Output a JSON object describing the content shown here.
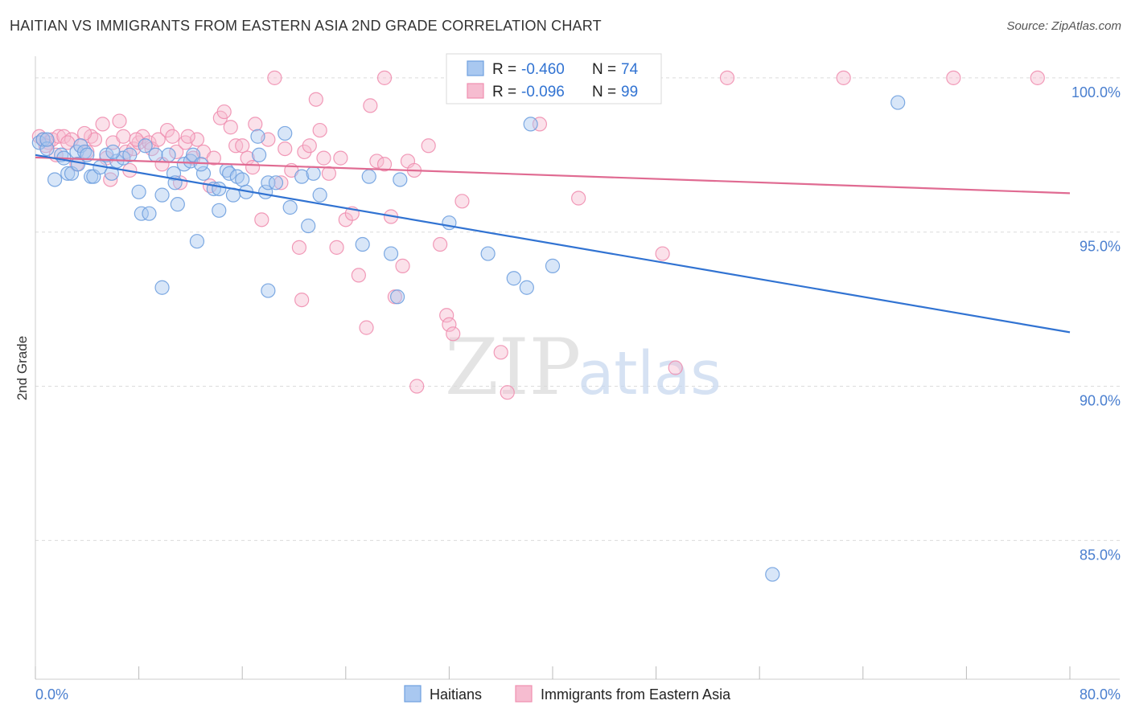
{
  "header": {
    "title": "HAITIAN VS IMMIGRANTS FROM EASTERN ASIA 2ND GRADE CORRELATION CHART",
    "source": "Source: ZipAtlas.com"
  },
  "watermark": {
    "zip": "ZIP",
    "atlas": "atlas"
  },
  "colors": {
    "blue": "#6fa0df",
    "blue_fill": "#a9c8f0",
    "blue_line": "#3173d2",
    "pink": "#ef8fb0",
    "pink_fill": "#f6bcd0",
    "pink_line": "#e06b92",
    "tick_label": "#4a7fcf",
    "grid": "#dcdcdc"
  },
  "stats_box": {
    "rows": [
      {
        "r_label": "R =",
        "r_value": "-0.460",
        "n_label": "N =",
        "n_value": "74"
      },
      {
        "r_label": "R =",
        "r_value": "-0.096",
        "n_label": "N =",
        "n_value": "99"
      }
    ]
  },
  "chart_data": {
    "type": "scatter",
    "ylabel": "2nd Grade",
    "xlim": [
      0,
      80
    ],
    "ylim": [
      80.5,
      100.7
    ],
    "x_ticks": [
      0,
      8,
      16,
      24,
      32,
      40,
      48,
      56,
      64,
      72,
      80
    ],
    "x_tick_labels": {
      "0": "0.0%",
      "80": "80.0%"
    },
    "y_ticks": [
      85,
      90,
      95,
      100
    ],
    "y_tick_labels": [
      "85.0%",
      "90.0%",
      "95.0%",
      "100.0%"
    ],
    "grid": "horizontal dashed",
    "legend_position": "bottom-center",
    "series": [
      {
        "name": "Haitians",
        "r": -0.46,
        "n": 74,
        "trend": {
          "x0": 0,
          "y0": 97.5,
          "x1": 80,
          "y1": 91.75
        },
        "points": [
          [
            0.3,
            97.9
          ],
          [
            0.6,
            98.0
          ],
          [
            0.9,
            97.7
          ],
          [
            1.5,
            96.7
          ],
          [
            2.0,
            97.5
          ],
          [
            2.5,
            96.9
          ],
          [
            2.8,
            96.9
          ],
          [
            3.2,
            97.6
          ],
          [
            3.3,
            97.2
          ],
          [
            3.5,
            97.8
          ],
          [
            3.8,
            97.6
          ],
          [
            4.3,
            96.8
          ],
          [
            4.5,
            96.8
          ],
          [
            5.0,
            97.1
          ],
          [
            5.5,
            97.5
          ],
          [
            5.9,
            96.9
          ],
          [
            6.3,
            97.3
          ],
          [
            6.8,
            97.4
          ],
          [
            7.3,
            97.5
          ],
          [
            8.0,
            96.3
          ],
          [
            8.2,
            95.6
          ],
          [
            8.8,
            95.6
          ],
          [
            8.5,
            97.8
          ],
          [
            9.3,
            97.5
          ],
          [
            9.8,
            96.2
          ],
          [
            10.3,
            97.5
          ],
          [
            10.7,
            96.9
          ],
          [
            10.8,
            96.6
          ],
          [
            11.0,
            95.9
          ],
          [
            11.5,
            97.2
          ],
          [
            12.0,
            97.3
          ],
          [
            12.2,
            97.5
          ],
          [
            12.5,
            94.7
          ],
          [
            13.0,
            96.9
          ],
          [
            13.8,
            96.4
          ],
          [
            14.2,
            96.4
          ],
          [
            14.2,
            95.7
          ],
          [
            14.8,
            97.0
          ],
          [
            15.0,
            96.9
          ],
          [
            15.3,
            96.2
          ],
          [
            15.6,
            96.8
          ],
          [
            16.0,
            96.7
          ],
          [
            16.3,
            96.3
          ],
          [
            17.2,
            98.1
          ],
          [
            17.3,
            97.5
          ],
          [
            17.8,
            96.3
          ],
          [
            18.0,
            96.6
          ],
          [
            18.0,
            93.1
          ],
          [
            18.6,
            96.6
          ],
          [
            19.3,
            98.2
          ],
          [
            19.7,
            95.8
          ],
          [
            20.6,
            96.8
          ],
          [
            21.1,
            95.2
          ],
          [
            21.5,
            96.9
          ],
          [
            22.0,
            96.2
          ],
          [
            25.3,
            94.6
          ],
          [
            25.8,
            96.8
          ],
          [
            27.5,
            94.3
          ],
          [
            28.0,
            92.9
          ],
          [
            28.2,
            96.7
          ],
          [
            32.0,
            95.3
          ],
          [
            35.0,
            94.3
          ],
          [
            37.0,
            93.5
          ],
          [
            38.0,
            93.2
          ],
          [
            38.3,
            98.5
          ],
          [
            40.0,
            93.9
          ],
          [
            9.8,
            93.2
          ],
          [
            66.7,
            99.2
          ],
          [
            57.0,
            83.9
          ],
          [
            4.0,
            97.5
          ],
          [
            6.0,
            97.6
          ],
          [
            12.8,
            97.2
          ],
          [
            2.2,
            97.4
          ],
          [
            0.9,
            98.0
          ]
        ]
      },
      {
        "name": "Immigrants from Eastern Asia",
        "r": -0.096,
        "n": 99,
        "trend": {
          "x0": 0,
          "y0": 97.42,
          "x1": 80,
          "y1": 96.26
        },
        "points": [
          [
            0.3,
            98.1
          ],
          [
            0.6,
            98.0
          ],
          [
            1.0,
            97.9
          ],
          [
            1.3,
            98.0
          ],
          [
            1.8,
            98.1
          ],
          [
            2.2,
            98.1
          ],
          [
            2.8,
            98.0
          ],
          [
            3.2,
            97.2
          ],
          [
            3.5,
            97.8
          ],
          [
            4.0,
            97.6
          ],
          [
            4.3,
            98.1
          ],
          [
            4.6,
            98.0
          ],
          [
            5.2,
            98.5
          ],
          [
            5.5,
            97.4
          ],
          [
            5.8,
            96.7
          ],
          [
            6.0,
            97.9
          ],
          [
            6.5,
            98.6
          ],
          [
            6.8,
            98.1
          ],
          [
            7.0,
            97.6
          ],
          [
            7.3,
            97.0
          ],
          [
            7.6,
            97.7
          ],
          [
            8.0,
            97.9
          ],
          [
            8.3,
            98.1
          ],
          [
            8.8,
            97.9
          ],
          [
            9.0,
            97.7
          ],
          [
            9.5,
            98.0
          ],
          [
            9.8,
            97.2
          ],
          [
            10.2,
            98.3
          ],
          [
            10.6,
            98.1
          ],
          [
            10.9,
            97.6
          ],
          [
            11.2,
            96.6
          ],
          [
            11.6,
            97.9
          ],
          [
            12.2,
            97.4
          ],
          [
            12.5,
            98.0
          ],
          [
            13.0,
            97.6
          ],
          [
            13.5,
            96.5
          ],
          [
            13.8,
            97.4
          ],
          [
            14.3,
            98.7
          ],
          [
            14.6,
            98.9
          ],
          [
            15.1,
            98.4
          ],
          [
            15.5,
            97.8
          ],
          [
            16.0,
            97.8
          ],
          [
            16.4,
            97.4
          ],
          [
            17.0,
            98.5
          ],
          [
            17.5,
            95.4
          ],
          [
            18.0,
            98.0
          ],
          [
            18.5,
            100.0
          ],
          [
            19.0,
            96.6
          ],
          [
            19.3,
            97.7
          ],
          [
            19.8,
            97.0
          ],
          [
            20.4,
            94.5
          ],
          [
            20.8,
            97.6
          ],
          [
            21.2,
            97.8
          ],
          [
            21.7,
            99.3
          ],
          [
            22.0,
            98.3
          ],
          [
            22.3,
            97.4
          ],
          [
            22.7,
            96.9
          ],
          [
            23.3,
            94.5
          ],
          [
            23.6,
            97.4
          ],
          [
            24.0,
            95.4
          ],
          [
            24.5,
            95.6
          ],
          [
            25.0,
            93.6
          ],
          [
            25.6,
            91.9
          ],
          [
            25.9,
            99.1
          ],
          [
            26.4,
            97.3
          ],
          [
            27.0,
            97.2
          ],
          [
            27.5,
            95.5
          ],
          [
            27.8,
            92.9
          ],
          [
            28.4,
            93.9
          ],
          [
            28.8,
            97.3
          ],
          [
            29.3,
            97.0
          ],
          [
            29.5,
            90.0
          ],
          [
            30.4,
            97.8
          ],
          [
            31.3,
            94.6
          ],
          [
            31.8,
            92.3
          ],
          [
            32.0,
            92.0
          ],
          [
            32.3,
            91.7
          ],
          [
            33.0,
            96.0
          ],
          [
            34.4,
            100.0
          ],
          [
            36.0,
            91.1
          ],
          [
            36.5,
            89.8
          ],
          [
            39.0,
            98.5
          ],
          [
            42.0,
            96.1
          ],
          [
            45.0,
            100.0
          ],
          [
            48.5,
            94.3
          ],
          [
            49.5,
            90.6
          ],
          [
            53.5,
            100.0
          ],
          [
            62.5,
            100.0
          ],
          [
            71.0,
            100.0
          ],
          [
            77.5,
            100.0
          ],
          [
            27.0,
            100.0
          ],
          [
            20.6,
            92.8
          ],
          [
            16.8,
            97.1
          ],
          [
            11.8,
            98.1
          ],
          [
            7.8,
            98.0
          ],
          [
            3.8,
            98.2
          ],
          [
            2.5,
            97.9
          ],
          [
            0.8,
            97.8
          ],
          [
            1.6,
            97.5
          ]
        ]
      }
    ]
  }
}
